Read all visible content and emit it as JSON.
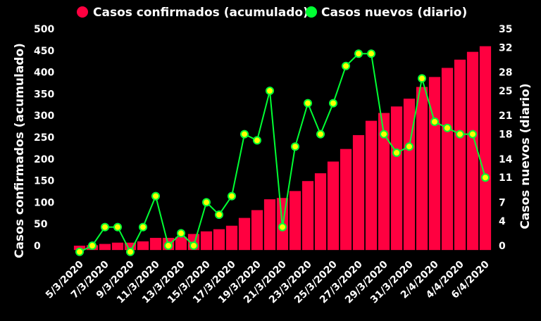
{
  "chart_data": {
    "type": "bar",
    "categories": [
      "5/3/2020",
      "6/3/2020",
      "7/3/2020",
      "8/3/2020",
      "9/3/2020",
      "10/3/2020",
      "11/3/2020",
      "12/3/2020",
      "13/3/2020",
      "14/3/2020",
      "15/3/2020",
      "16/3/2020",
      "17/3/2020",
      "18/3/2020",
      "19/3/2020",
      "20/3/2020",
      "21/3/2020",
      "22/3/2020",
      "23/3/2020",
      "24/3/2020",
      "25/3/2020",
      "26/3/2020",
      "27/3/2020",
      "28/3/2020",
      "29/3/2020",
      "30/3/2020",
      "31/3/2020",
      "1/4/2020",
      "2/4/2020",
      "3/4/2020",
      "4/4/2020",
      "5/4/2020",
      "6/4/2020"
    ],
    "x_tick_labels": [
      "5/3/2020",
      "7/3/2020",
      "9/3/2020",
      "11/3/2020",
      "13/3/2020",
      "15/3/2020",
      "17/3/2020",
      "19/3/2020",
      "21/3/2020",
      "23/3/2020",
      "25/3/2020",
      "27/3/2020",
      "29/3/2020",
      "31/3/2020",
      "2/4/2020",
      "4/4/2020",
      "6/4/2020"
    ],
    "series": [
      {
        "name": "Casos confirmados (acumulado)",
        "type": "bar",
        "axis": "left",
        "color": "#ff0040",
        "values": [
          0,
          1,
          4,
          7,
          7,
          10,
          18,
          18,
          20,
          27,
          33,
          38,
          46,
          64,
          82,
          107,
          110,
          126,
          149,
          167,
          194,
          223,
          255,
          288,
          306,
          321,
          339,
          366,
          389,
          410,
          429,
          447,
          460
        ]
      },
      {
        "name": "Casos nuevos (diario)",
        "type": "line",
        "axis": "right",
        "color": "#00ff33",
        "marker_fill": "#ffff00",
        "values": [
          -1,
          0,
          3,
          3,
          -1,
          3,
          8,
          0,
          2,
          0,
          7,
          5,
          8,
          18,
          17,
          25,
          3,
          16,
          23,
          18,
          23,
          29,
          31,
          31,
          18,
          15,
          16,
          27,
          20,
          19,
          18,
          18,
          11
        ]
      }
    ],
    "left_axis": {
      "label": "Casos confirmados (acumulado)",
      "ticks": [
        0,
        50,
        100,
        150,
        200,
        250,
        300,
        350,
        400,
        450,
        500
      ],
      "range": [
        -10,
        500
      ]
    },
    "right_axis": {
      "label": "Casos nuevos (diario)",
      "ticks": [
        0,
        4,
        7,
        11,
        14,
        18,
        21,
        25,
        28,
        32,
        35
      ],
      "range": [
        -0.7,
        35
      ]
    },
    "legend_position": "top",
    "grid": false,
    "background": "#000000"
  }
}
